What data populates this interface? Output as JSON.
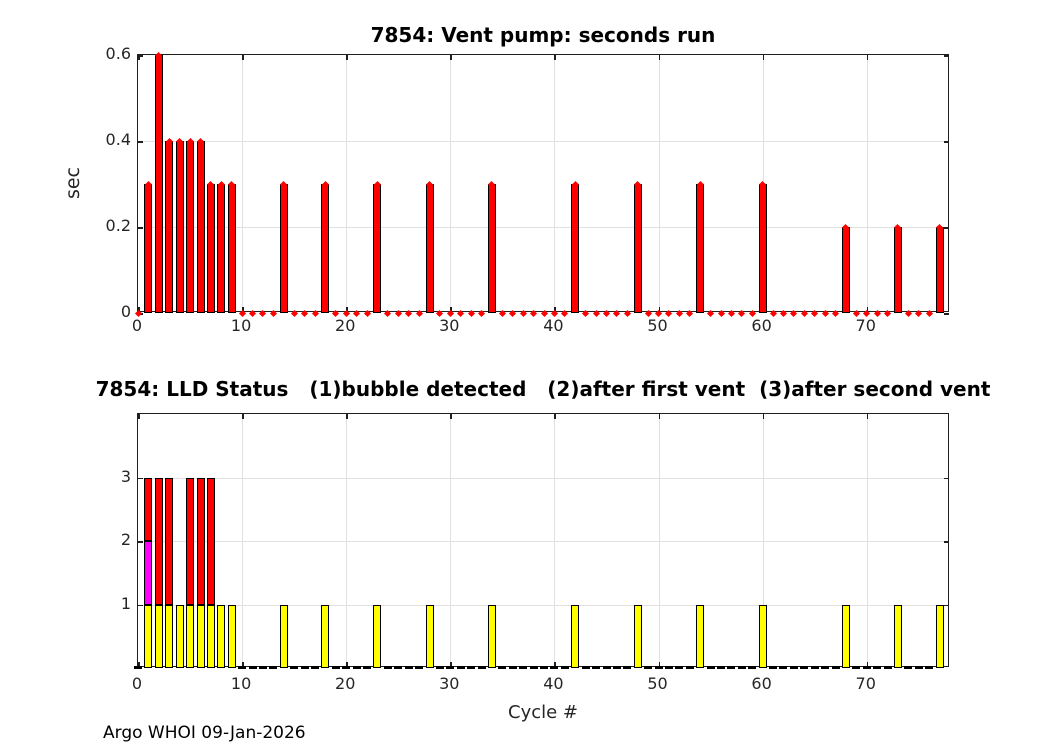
{
  "figure": {
    "xlabel": "Cycle #",
    "footer": "Argo WHOI 09-Jan-2026",
    "background": "#ffffff",
    "axis_color": "#1f1f1f",
    "grid_color": "#e0e0e0"
  },
  "chart_data": [
    {
      "type": "bar",
      "title": "7854: Vent pump: seconds run",
      "ylabel": "sec",
      "xlabel": "",
      "x_note": "x value = array index = cycle number (0-77)",
      "series": [
        {
          "name": "vent pump seconds run",
          "color": "#ff0000",
          "edge_color": "#000000",
          "values": [
            0,
            0.3,
            0.6,
            0.4,
            0.4,
            0.4,
            0.4,
            0.3,
            0.3,
            0.3,
            0,
            0,
            0,
            0,
            0.3,
            0,
            0,
            0,
            0.3,
            0,
            0,
            0,
            0,
            0.3,
            0,
            0,
            0,
            0,
            0.3,
            0,
            0,
            0,
            0,
            0,
            0.3,
            0,
            0,
            0,
            0,
            0,
            0,
            0,
            0.3,
            0,
            0,
            0,
            0,
            0,
            0.3,
            0,
            0,
            0,
            0,
            0,
            0.3,
            0,
            0,
            0,
            0,
            0,
            0.3,
            0,
            0,
            0,
            0,
            0,
            0,
            0,
            0.2,
            0,
            0,
            0,
            0,
            0.2,
            0,
            0,
            0,
            0.2
          ]
        }
      ],
      "markers": {
        "shape": "diamond",
        "color": "#ff0000",
        "note": "red diamond at every cycle value incl. zeros"
      },
      "xlim": [
        0,
        78
      ],
      "ylim": [
        0,
        0.6
      ],
      "xticks": [
        0,
        10,
        20,
        30,
        40,
        50,
        60,
        70
      ],
      "xtick_labels": [
        "0",
        "10",
        "20",
        "30",
        "40",
        "50",
        "60",
        "70"
      ],
      "yticks": [
        0,
        0.2,
        0.4,
        0.6
      ],
      "ytick_labels": [
        "0",
        "0.2",
        "0.4",
        "0.6"
      ],
      "grid": true,
      "legend": "none"
    },
    {
      "type": "stacked-bar",
      "title": "7854: LLD Status   (1)bubble detected   (2)after first vent  (3)after second vent",
      "ylabel": "",
      "xlabel": "Cycle #",
      "x_note": "x value = array index = cycle number (0-77)",
      "series": [
        {
          "name": "(1) bubble detected",
          "color": "#ffff00",
          "edge_color": "#000000",
          "values": [
            0,
            1,
            1,
            1,
            1,
            1,
            1,
            1,
            1,
            1,
            0,
            0,
            0,
            0,
            1,
            0,
            0,
            0,
            1,
            0,
            0,
            0,
            0,
            1,
            0,
            0,
            0,
            0,
            1,
            0,
            0,
            0,
            0,
            0,
            1,
            0,
            0,
            0,
            0,
            0,
            0,
            0,
            1,
            0,
            0,
            0,
            0,
            0,
            1,
            0,
            0,
            0,
            0,
            0,
            1,
            0,
            0,
            0,
            0,
            0,
            1,
            0,
            0,
            0,
            0,
            0,
            0,
            0,
            1,
            0,
            0,
            0,
            0,
            1,
            0,
            0,
            0,
            1
          ]
        },
        {
          "name": "(2) after first vent",
          "color": "#ff00ff",
          "edge_color": "#000000",
          "values": [
            0,
            1,
            0,
            0,
            0,
            0,
            0,
            0,
            0,
            0,
            0,
            0,
            0,
            0,
            0,
            0,
            0,
            0,
            0,
            0,
            0,
            0,
            0,
            0,
            0,
            0,
            0,
            0,
            0,
            0,
            0,
            0,
            0,
            0,
            0,
            0,
            0,
            0,
            0,
            0,
            0,
            0,
            0,
            0,
            0,
            0,
            0,
            0,
            0,
            0,
            0,
            0,
            0,
            0,
            0,
            0,
            0,
            0,
            0,
            0,
            0,
            0,
            0,
            0,
            0,
            0,
            0,
            0,
            0,
            0,
            0,
            0,
            0,
            0,
            0,
            0,
            0,
            0
          ]
        },
        {
          "name": "(3) after second vent",
          "color": "#ff0000",
          "edge_color": "#000000",
          "values": [
            0,
            1,
            2,
            2,
            0,
            2,
            2,
            2,
            0,
            0,
            0,
            0,
            0,
            0,
            0,
            0,
            0,
            0,
            0,
            0,
            0,
            0,
            0,
            0,
            0,
            0,
            0,
            0,
            0,
            0,
            0,
            0,
            0,
            0,
            0,
            0,
            0,
            0,
            0,
            0,
            0,
            0,
            0,
            0,
            0,
            0,
            0,
            0,
            0,
            0,
            0,
            0,
            0,
            0,
            0,
            0,
            0,
            0,
            0,
            0,
            0,
            0,
            0,
            0,
            0,
            0,
            0,
            0,
            0,
            0,
            0,
            0,
            0,
            0,
            0,
            0,
            0,
            0
          ]
        }
      ],
      "zero_dash": {
        "shape": "dash",
        "color": "#000000",
        "note": "black baseline dash at cycles with status 0"
      },
      "xlim": [
        0,
        78
      ],
      "ylim": [
        0,
        4
      ],
      "xticks": [
        0,
        10,
        20,
        30,
        40,
        50,
        60,
        70
      ],
      "xtick_labels": [
        "0",
        "10",
        "20",
        "30",
        "40",
        "50",
        "60",
        "70"
      ],
      "yticks": [
        1,
        2,
        3
      ],
      "ytick_labels": [
        "1",
        "2",
        "3"
      ],
      "grid": true,
      "legend": "none (legend text embedded in title)"
    }
  ]
}
